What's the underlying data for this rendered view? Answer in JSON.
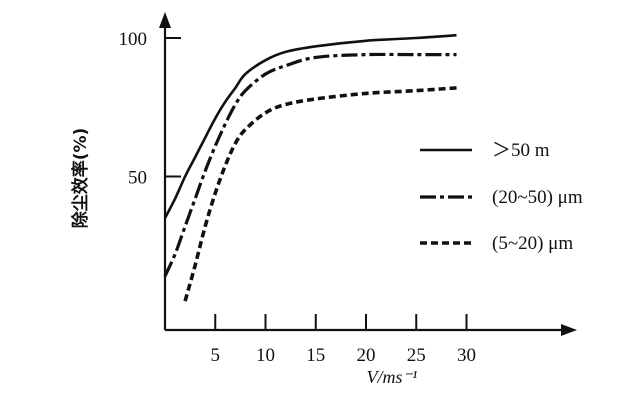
{
  "chart_data": {
    "type": "line",
    "title": "",
    "xlabel": "V/ms⁻¹",
    "ylabel": "除尘效率(%)",
    "xlim": [
      0,
      30
    ],
    "ylim": [
      0,
      100
    ],
    "x_ticks": [
      5,
      10,
      15,
      20,
      25,
      30
    ],
    "x_tick_labels": [
      "5",
      "10",
      "15",
      "20",
      "25",
      "30"
    ],
    "y_ticks": [
      50,
      100
    ],
    "y_tick_labels": [
      "50",
      "100"
    ],
    "grid": false,
    "legend_position": "right",
    "series": [
      {
        "name": "＞50 m",
        "style": "solid",
        "x": [
          0,
          1,
          2,
          3,
          4,
          5,
          6,
          7,
          8,
          10,
          12,
          15,
          20,
          25,
          29
        ],
        "y": [
          35,
          42,
          50,
          57,
          64,
          71,
          77,
          82,
          87,
          92,
          95,
          97,
          99,
          100,
          101
        ]
      },
      {
        "name": "(20~50) μm",
        "style": "dashdot",
        "x": [
          0,
          1,
          2,
          3,
          4,
          5,
          6,
          7,
          8,
          10,
          12,
          15,
          20,
          25,
          29
        ],
        "y": [
          14,
          22,
          32,
          42,
          52,
          61,
          69,
          76,
          81,
          87,
          90,
          93,
          94,
          94,
          94
        ]
      },
      {
        "name": "(5~20) μm",
        "style": "dashed",
        "x": [
          2,
          3,
          4,
          5,
          6,
          7,
          8,
          10,
          12,
          15,
          20,
          25,
          29
        ],
        "y": [
          5,
          18,
          32,
          44,
          54,
          62,
          67,
          73,
          76,
          78,
          80,
          81,
          82
        ]
      }
    ]
  }
}
